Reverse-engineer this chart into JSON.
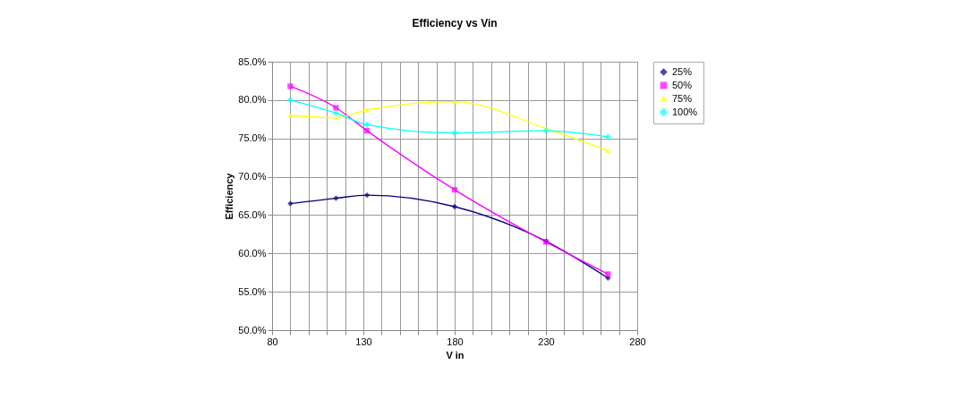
{
  "chart_data": {
    "type": "line",
    "title": "Efficiency vs Vin",
    "xlabel": "V in",
    "ylabel": "Efficiency",
    "x": [
      90,
      115,
      132,
      180,
      230,
      264
    ],
    "series": [
      {
        "name": "25%",
        "color": "#000080",
        "marker": "diamond",
        "values": [
          66.5,
          67.2,
          67.6,
          66.1,
          61.6,
          56.8
        ]
      },
      {
        "name": "50%",
        "color": "#ff00ff",
        "marker": "square",
        "values": [
          81.8,
          79.0,
          76.0,
          68.3,
          61.5,
          57.3
        ]
      },
      {
        "name": "75%",
        "color": "#ffff00",
        "marker": "triangle",
        "values": [
          78.0,
          77.7,
          78.7,
          79.8,
          76.3,
          73.4
        ]
      },
      {
        "name": "100%",
        "color": "#00ffff",
        "marker": "cross",
        "values": [
          80.0,
          78.3,
          76.8,
          75.7,
          76.0,
          75.2
        ]
      }
    ],
    "xlim": [
      80,
      280
    ],
    "xticks": [
      80,
      {
        "value": 90,
        "label": null
      },
      {
        "value": 100,
        "label": null
      },
      {
        "value": 110,
        "label": null
      },
      {
        "value": 120,
        "label": null
      },
      130,
      {
        "value": 140,
        "label": null
      },
      {
        "value": 150,
        "label": null
      },
      {
        "value": 160,
        "label": null
      },
      {
        "value": 170,
        "label": null
      },
      180,
      {
        "value": 190,
        "label": null
      },
      {
        "value": 200,
        "label": null
      },
      {
        "value": 210,
        "label": null
      },
      {
        "value": 220,
        "label": null
      },
      230,
      {
        "value": 240,
        "label": null
      },
      {
        "value": 250,
        "label": null
      },
      {
        "value": 260,
        "label": null
      },
      {
        "value": 270,
        "label": null
      },
      280
    ],
    "ylim": [
      50,
      85
    ],
    "yticks": [
      {
        "value": 50,
        "label": "50.0%"
      },
      {
        "value": 55,
        "label": "55.0%"
      },
      {
        "value": 60,
        "label": "60.0%"
      },
      {
        "value": 65,
        "label": "65.0%"
      },
      {
        "value": 70,
        "label": "70.0%"
      },
      {
        "value": 75,
        "label": "75.0%"
      },
      {
        "value": 80,
        "label": "80.0%"
      },
      {
        "value": 85,
        "label": "85.0%"
      }
    ],
    "grid": true,
    "legend": "right",
    "line_style": "solid"
  }
}
